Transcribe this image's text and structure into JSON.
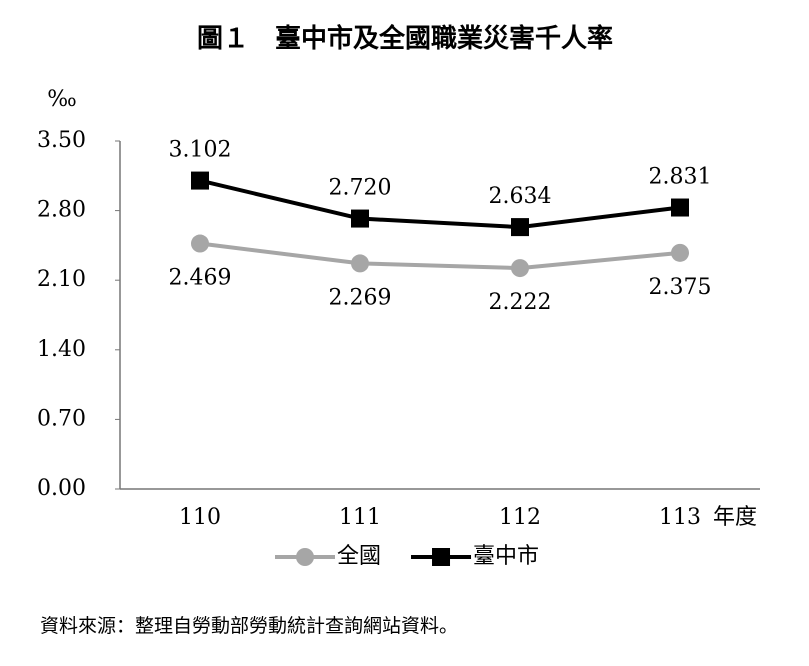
{
  "chart_data": {
    "type": "line",
    "title": "圖１　臺中市及全國職業災害千人率",
    "y_unit": "‰",
    "x_label": "年度",
    "categories": [
      "110",
      "111",
      "112",
      "113"
    ],
    "series": [
      {
        "name": "全國",
        "color": "#a6a6a6",
        "marker": "circle",
        "values": [
          2.469,
          2.269,
          2.222,
          2.375
        ],
        "value_labels": [
          "2.469",
          "2.269",
          "2.222",
          "2.375"
        ]
      },
      {
        "name": "臺中市",
        "color": "#000000",
        "marker": "square",
        "values": [
          3.102,
          2.72,
          2.634,
          2.831
        ],
        "value_labels": [
          "3.102",
          "2.720",
          "2.634",
          "2.831"
        ]
      }
    ],
    "ylim": [
      0,
      3.5
    ],
    "yticks": [
      {
        "value": 0,
        "label": "0.00"
      },
      {
        "value": 0.7,
        "label": "0.70"
      },
      {
        "value": 1.4,
        "label": "1.40"
      },
      {
        "value": 2.1,
        "label": "2.10"
      },
      {
        "value": 2.8,
        "label": "2.80"
      },
      {
        "value": 3.5,
        "label": "3.50"
      }
    ],
    "grid": false,
    "legend": "bottom",
    "source": "資料來源：整理自勞動部勞動統計查詢網站資料。"
  }
}
